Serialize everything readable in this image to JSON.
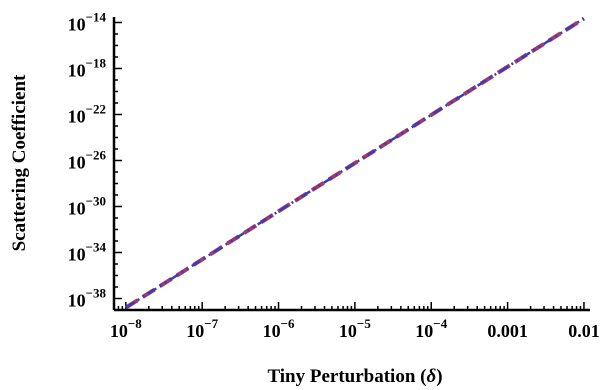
{
  "chart_data": {
    "type": "line",
    "xlabel": "Tiny Perturbation (δ)",
    "ylabel": "Scattering Coefficient",
    "x_scale": "log",
    "y_scale": "log",
    "xlim": [
      7e-09,
      0.012
    ],
    "ylim": [
      1e-39,
      3e-14
    ],
    "x_ticks": [
      {
        "value": 1e-08,
        "base": "10",
        "exp": "−8"
      },
      {
        "value": 1e-07,
        "base": "10",
        "exp": "−7"
      },
      {
        "value": 1e-06,
        "base": "10",
        "exp": "−6"
      },
      {
        "value": 1e-05,
        "base": "10",
        "exp": "−5"
      },
      {
        "value": 0.0001,
        "base": "10",
        "exp": "−4"
      },
      {
        "value": 0.001,
        "base": "0.001",
        "exp": ""
      },
      {
        "value": 0.01,
        "base": "0.01",
        "exp": ""
      }
    ],
    "y_ticks": [
      {
        "value": 1e-38,
        "base": "10",
        "exp": "−38"
      },
      {
        "value": 1e-34,
        "base": "10",
        "exp": "−34"
      },
      {
        "value": 1e-30,
        "base": "10",
        "exp": "−30"
      },
      {
        "value": 1e-26,
        "base": "10",
        "exp": "−26"
      },
      {
        "value": 1e-22,
        "base": "10",
        "exp": "−22"
      },
      {
        "value": 1e-18,
        "base": "10",
        "exp": "−18"
      },
      {
        "value": 1e-14,
        "base": "10",
        "exp": "−14"
      }
    ],
    "series": [
      {
        "x": [
          1e-08,
          0.01
        ],
        "y": [
          1.6e-39,
          2.2e-14
        ],
        "color": "#9e3a6e",
        "style": "dashed"
      },
      {
        "x": [
          1e-08,
          0.01
        ],
        "y": [
          1.6e-39,
          2.2e-14
        ],
        "color": "#3b3bb3",
        "style": "dash-dot-dot"
      }
    ],
    "grid": false,
    "legend": false
  }
}
